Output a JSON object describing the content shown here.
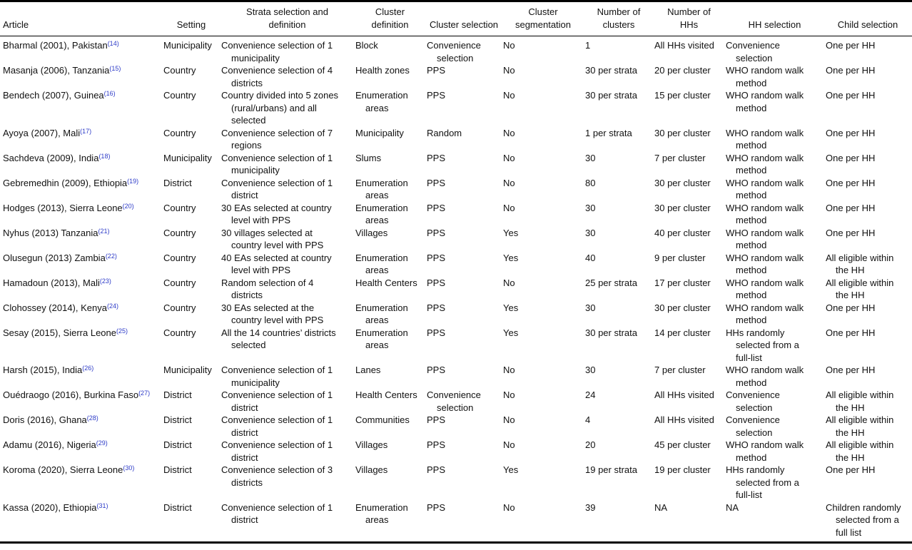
{
  "colors": {
    "text": "#111111",
    "reference_link": "#2d3bc8",
    "rule": "#000000"
  },
  "table": {
    "columns": [
      {
        "key": "article",
        "label": "Article"
      },
      {
        "key": "setting",
        "label": "Setting"
      },
      {
        "key": "strata",
        "label": "Strata selection and\ndefinition"
      },
      {
        "key": "cluster_definition",
        "label": "Cluster\ndefinition"
      },
      {
        "key": "cluster_selection",
        "label": "Cluster selection"
      },
      {
        "key": "cluster_segmentation",
        "label": "Cluster\nsegmentation"
      },
      {
        "key": "n_clusters",
        "label": "Number of\nclusters"
      },
      {
        "key": "n_hhs",
        "label": "Number of\nHHs"
      },
      {
        "key": "hh_selection",
        "label": "HH selection"
      },
      {
        "key": "child_selection",
        "label": "Child selection"
      }
    ],
    "rows": [
      {
        "article": "Bharmal (2001), Pakistan",
        "ref": "(14)",
        "setting": "Municipality",
        "strata": "Convenience selection of 1\nmunicipality",
        "cluster_definition": "Block",
        "cluster_selection": "Convenience\nselection",
        "cluster_segmentation": "No",
        "n_clusters": "1",
        "n_hhs": "All HHs visited",
        "hh_selection": "Convenience\nselection",
        "child_selection": "One per HH"
      },
      {
        "article": "Masanja (2006), Tanzania",
        "ref": "(15)",
        "setting": "Country",
        "strata": "Convenience selection of 4\ndistricts",
        "cluster_definition": "Health zones",
        "cluster_selection": "PPS",
        "cluster_segmentation": "No",
        "n_clusters": "30 per strata",
        "n_hhs": "20 per cluster",
        "hh_selection": "WHO random walk\nmethod",
        "child_selection": "One per HH"
      },
      {
        "article": "Bendech (2007), Guinea",
        "ref": "(16)",
        "setting": "Country",
        "strata": "Country divided into 5 zones\n(rural/urbans) and all\nselected",
        "cluster_definition": "Enumeration\nareas",
        "cluster_selection": "PPS",
        "cluster_segmentation": "No",
        "n_clusters": "30 per strata",
        "n_hhs": "15 per cluster",
        "hh_selection": "WHO random walk\nmethod",
        "child_selection": "One per HH"
      },
      {
        "article": "Ayoya (2007), Mali",
        "ref": "(17)",
        "setting": "Country",
        "strata": "Convenience selection of 7\nregions",
        "cluster_definition": "Municipality",
        "cluster_selection": "Random",
        "cluster_segmentation": "No",
        "n_clusters": "1 per strata",
        "n_hhs": "30 per cluster",
        "hh_selection": "WHO random walk\nmethod",
        "child_selection": "One per HH"
      },
      {
        "article": "Sachdeva (2009), India",
        "ref": "(18)",
        "setting": "Municipality",
        "strata": "Convenience selection of 1\nmunicipality",
        "cluster_definition": "Slums",
        "cluster_selection": "PPS",
        "cluster_segmentation": "No",
        "n_clusters": "30",
        "n_hhs": "7 per cluster",
        "hh_selection": "WHO random walk\nmethod",
        "child_selection": "One per HH"
      },
      {
        "article": "Gebremedhin (2009), Ethiopia",
        "ref": "(19)",
        "setting": "District",
        "strata": "Convenience selection of 1\ndistrict",
        "cluster_definition": "Enumeration\nareas",
        "cluster_selection": "PPS",
        "cluster_segmentation": "No",
        "n_clusters": "80",
        "n_hhs": "30 per cluster",
        "hh_selection": "WHO random walk\nmethod",
        "child_selection": "One per HH"
      },
      {
        "article": "Hodges (2013), Sierra Leone",
        "ref": "(20)",
        "setting": "Country",
        "strata": "30 EAs selected at country\nlevel with PPS",
        "cluster_definition": "Enumeration\nareas",
        "cluster_selection": "PPS",
        "cluster_segmentation": "No",
        "n_clusters": "30",
        "n_hhs": "30 per cluster",
        "hh_selection": "WHO random walk\nmethod",
        "child_selection": "One per HH"
      },
      {
        "article": "Nyhus (2013) Tanzania",
        "ref": "(21)",
        "setting": "Country",
        "strata": "30 villages selected at\ncountry level with PPS",
        "cluster_definition": "Villages",
        "cluster_selection": "PPS",
        "cluster_segmentation": "Yes",
        "n_clusters": "30",
        "n_hhs": "40 per cluster",
        "hh_selection": "WHO random walk\nmethod",
        "child_selection": "One per HH"
      },
      {
        "article": "Olusegun (2013) Zambia",
        "ref": "(22)",
        "setting": "Country",
        "strata": "40 EAs selected at country\nlevel with PPS",
        "cluster_definition": "Enumeration\nareas",
        "cluster_selection": "PPS",
        "cluster_segmentation": "Yes",
        "n_clusters": "40",
        "n_hhs": "9 per cluster",
        "hh_selection": "WHO random walk\nmethod",
        "child_selection": "All eligible within\nthe HH"
      },
      {
        "article": "Hamadoun (2013), Mali",
        "ref": "(23)",
        "setting": "Country",
        "strata": "Random selection of 4\ndistricts",
        "cluster_definition": "Health Centers",
        "cluster_selection": "PPS",
        "cluster_segmentation": "No",
        "n_clusters": "25 per strata",
        "n_hhs": "17 per cluster",
        "hh_selection": "WHO random walk\nmethod",
        "child_selection": "All eligible within\nthe HH"
      },
      {
        "article": "Clohossey (2014), Kenya",
        "ref": "(24)",
        "setting": "Country",
        "strata": "30 EAs selected at the\ncountry level with PPS",
        "cluster_definition": "Enumeration\nareas",
        "cluster_selection": "PPS",
        "cluster_segmentation": "Yes",
        "n_clusters": "30",
        "n_hhs": "30 per cluster",
        "hh_selection": "WHO random walk\nmethod",
        "child_selection": "One per HH"
      },
      {
        "article": "Sesay (2015), Sierra Leone",
        "ref": "(25)",
        "setting": "Country",
        "strata": "All the 14 countries’ districts\nselected",
        "cluster_definition": "Enumeration\nareas",
        "cluster_selection": "PPS",
        "cluster_segmentation": "Yes",
        "n_clusters": "30 per strata",
        "n_hhs": "14 per cluster",
        "hh_selection": "HHs randomly\nselected from a\nfull-list",
        "child_selection": "One per HH"
      },
      {
        "article": "Harsh (2015), India",
        "ref": "(26)",
        "setting": "Municipality",
        "strata": "Convenience selection of 1\nmunicipality",
        "cluster_definition": "Lanes",
        "cluster_selection": "PPS",
        "cluster_segmentation": "No",
        "n_clusters": "30",
        "n_hhs": "7 per cluster",
        "hh_selection": "WHO random walk\nmethod",
        "child_selection": "One per HH"
      },
      {
        "article": "Ouédraogo (2016), Burkina Faso",
        "ref": "(27)",
        "setting": "District",
        "strata": "Convenience selection of 1\ndistrict",
        "cluster_definition": "Health Centers",
        "cluster_selection": "Convenience\nselection",
        "cluster_segmentation": "No",
        "n_clusters": "24",
        "n_hhs": "All HHs visited",
        "hh_selection": "Convenience\nselection",
        "child_selection": "All eligible within\nthe HH"
      },
      {
        "article": "Doris (2016), Ghana",
        "ref": "(28)",
        "setting": "District",
        "strata": "Convenience selection of 1\ndistrict",
        "cluster_definition": "Communities",
        "cluster_selection": "PPS",
        "cluster_segmentation": "No",
        "n_clusters": "4",
        "n_hhs": "All HHs visited",
        "hh_selection": "Convenience\nselection",
        "child_selection": "All eligible within\nthe HH"
      },
      {
        "article": "Adamu (2016), Nigeria",
        "ref": "(29)",
        "setting": "District",
        "strata": "Convenience selection of 1\ndistrict",
        "cluster_definition": "Villages",
        "cluster_selection": "PPS",
        "cluster_segmentation": "No",
        "n_clusters": "20",
        "n_hhs": "45 per cluster",
        "hh_selection": "WHO random walk\nmethod",
        "child_selection": "All eligible within\nthe HH"
      },
      {
        "article": "Koroma (2020), Sierra Leone",
        "ref": "(30)",
        "setting": "District",
        "strata": "Convenience selection of 3\ndistricts",
        "cluster_definition": "Villages",
        "cluster_selection": "PPS",
        "cluster_segmentation": "Yes",
        "n_clusters": "19 per strata",
        "n_hhs": "19 per cluster",
        "hh_selection": "HHs randomly\nselected from a\nfull-list",
        "child_selection": "One per HH"
      },
      {
        "article": "Kassa (2020), Ethiopia",
        "ref": "(31)",
        "setting": "District",
        "strata": "Convenience selection of 1\ndistrict",
        "cluster_definition": "Enumeration\nareas",
        "cluster_selection": "PPS",
        "cluster_segmentation": "No",
        "n_clusters": "39",
        "n_hhs": "NA",
        "hh_selection": "NA",
        "child_selection": "Children randomly\nselected from a\nfull list"
      }
    ]
  }
}
